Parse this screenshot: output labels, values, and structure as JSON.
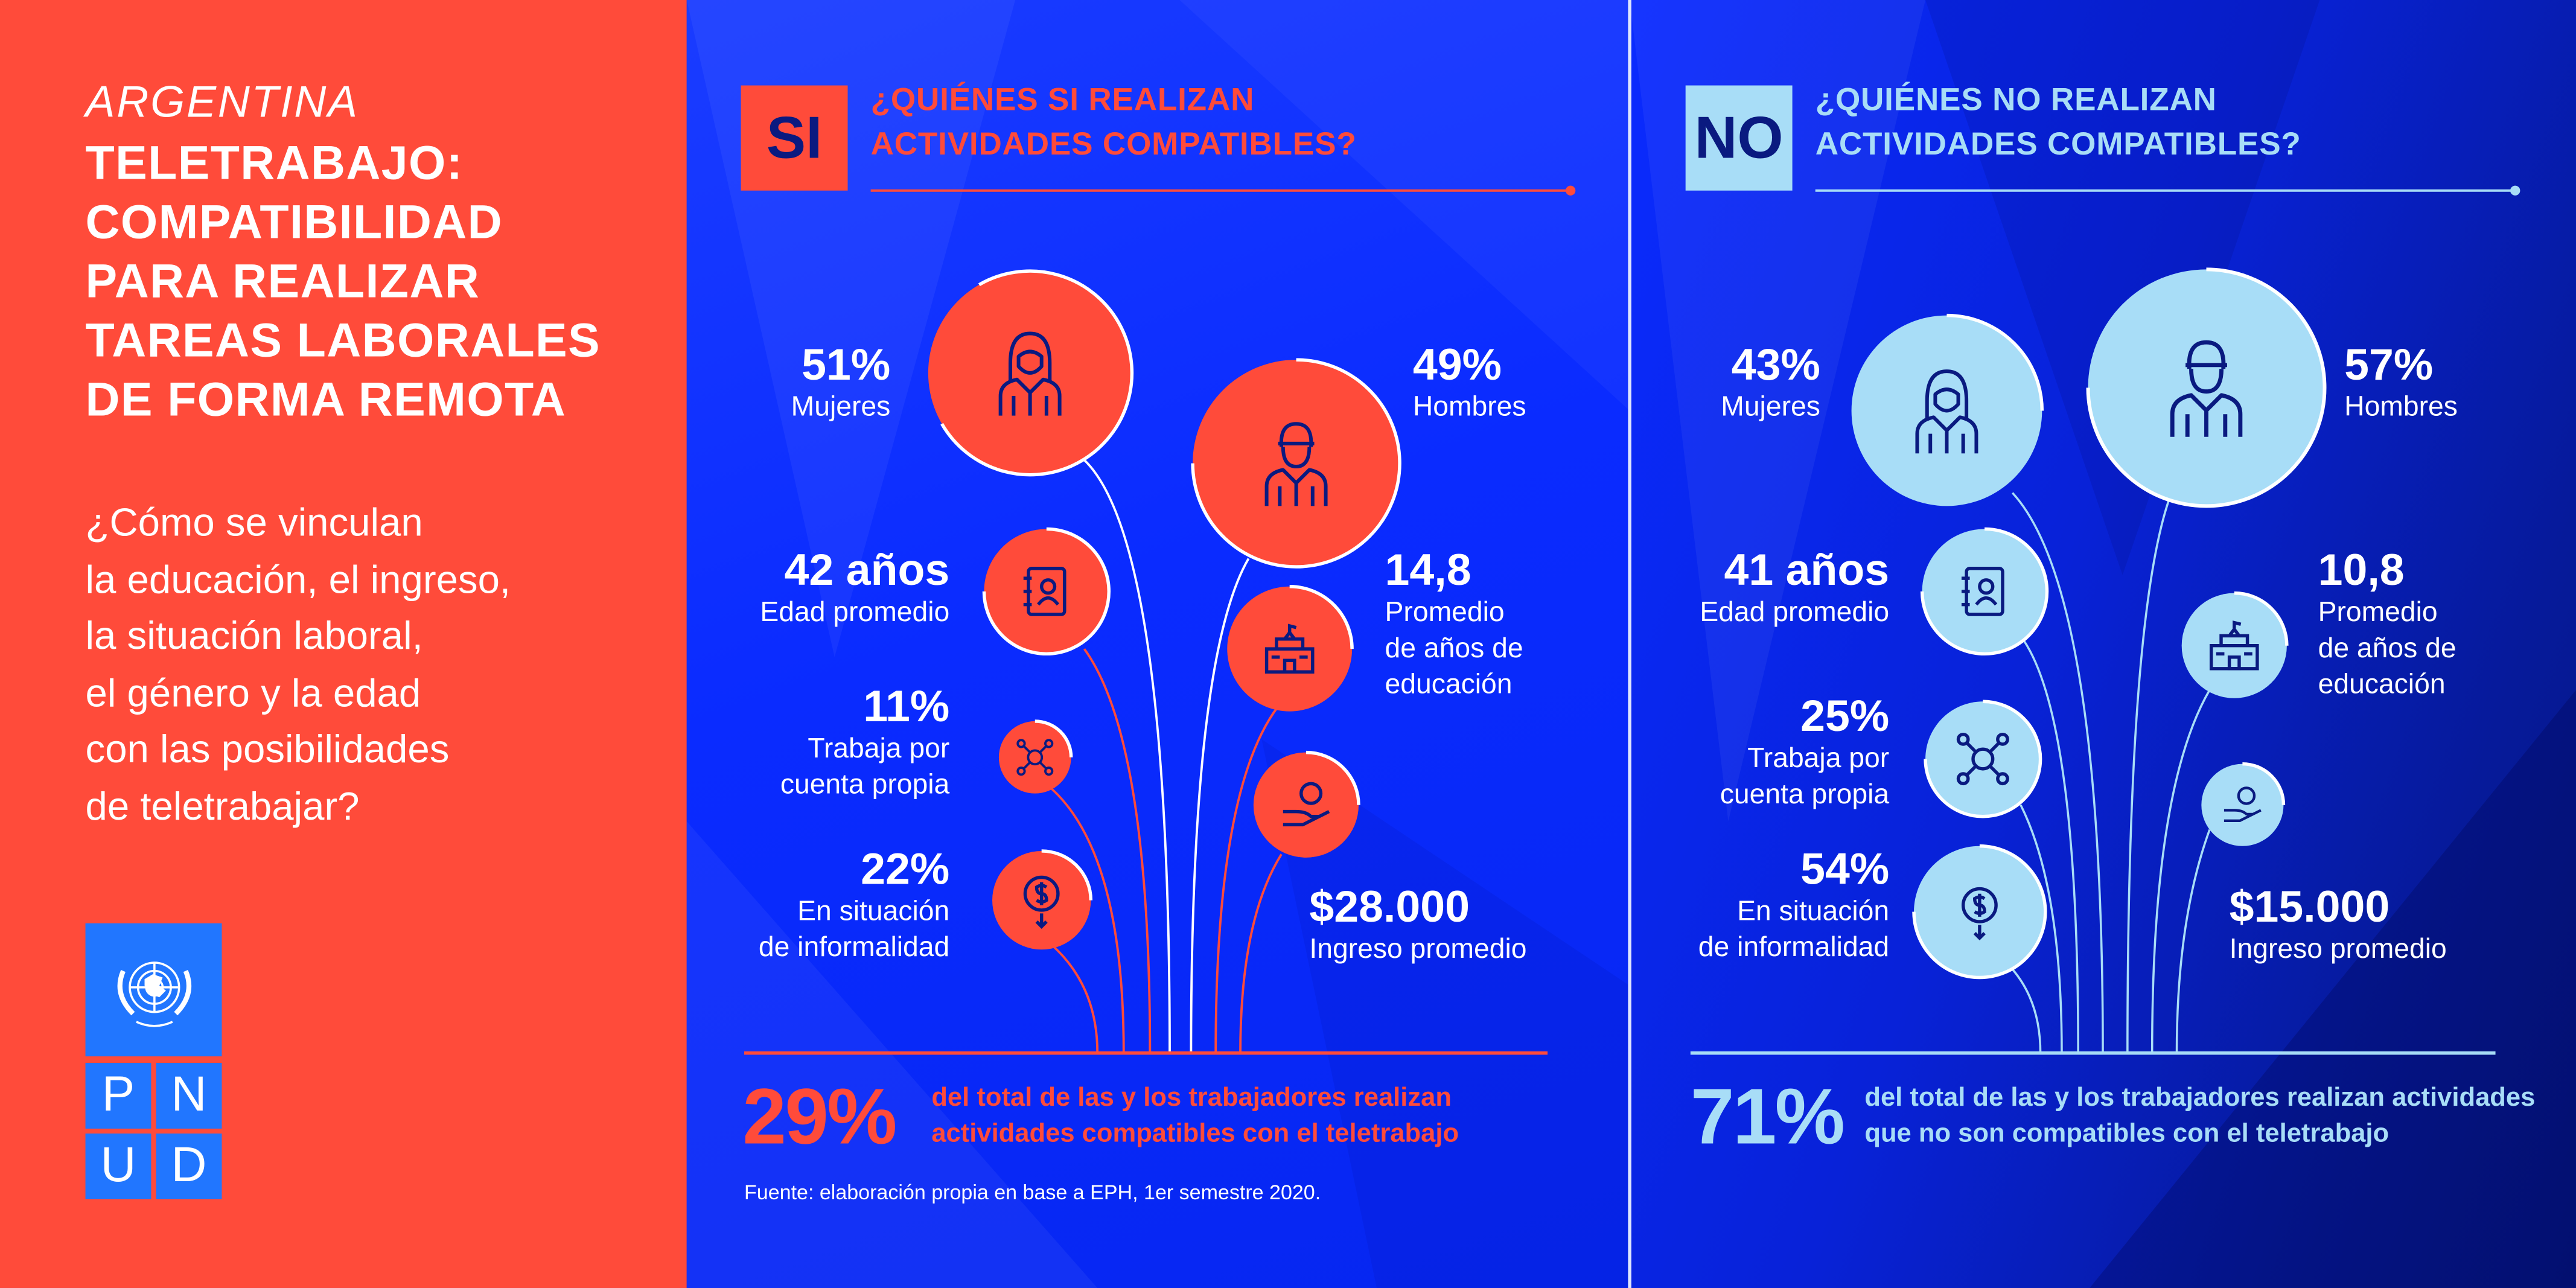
{
  "left": {
    "country": "ARGENTINA",
    "title_lines": [
      "TELETRABAJO:",
      "COMPATIBILIDAD",
      "PARA REALIZAR",
      "TAREAS LABORALES",
      "DE FORMA REMOTA"
    ],
    "question_lines": [
      "¿Cómo se vinculan",
      "la educación, el ingreso,",
      "la situación laboral,",
      "el género y la edad",
      "con las posibilidades",
      "de teletrabajar?"
    ],
    "logo": {
      "letters": [
        "P",
        "N",
        "U",
        "D"
      ],
      "text": "PNUD"
    }
  },
  "si": {
    "badge": "SI",
    "question_lines": [
      "¿QUIÉNES SI REALIZAN",
      "ACTIVIDADES COMPATIBLES?"
    ],
    "accent": "#ff4b3a",
    "women": {
      "value": "51%",
      "label": "Mujeres"
    },
    "men": {
      "value": "49%",
      "label": "Hombres"
    },
    "age": {
      "value": "42 años",
      "label": "Edad promedio"
    },
    "education": {
      "value": "14,8",
      "label_lines": [
        "Promedio",
        "de años de",
        "educación"
      ]
    },
    "self_employed": {
      "value": "11%",
      "label_lines": [
        "Trabaja por",
        "cuenta propia"
      ]
    },
    "informal": {
      "value": "22%",
      "label_lines": [
        "En situación",
        "de informalidad"
      ]
    },
    "income": {
      "value": "$28.000",
      "label": "Ingreso promedio"
    },
    "total": {
      "value": "29%",
      "text_lines": [
        "del total de las y los trabajadores realizan",
        "actividades compatibles con el teletrabajo"
      ]
    },
    "source": "Fuente: elaboración propia en base a EPH, 1er semestre 2020."
  },
  "no": {
    "badge": "NO",
    "question_lines": [
      "¿QUIÉNES NO REALIZAN",
      "ACTIVIDADES COMPATIBLES?"
    ],
    "accent": "#a8ddf7",
    "women": {
      "value": "43%",
      "label": "Mujeres"
    },
    "men": {
      "value": "57%",
      "label": "Hombres"
    },
    "age": {
      "value": "41 años",
      "label": "Edad promedio"
    },
    "education": {
      "value": "10,8",
      "label_lines": [
        "Promedio",
        "de años de",
        "educación"
      ]
    },
    "self_employed": {
      "value": "25%",
      "label_lines": [
        "Trabaja por",
        "cuenta propia"
      ]
    },
    "informal": {
      "value": "54%",
      "label_lines": [
        "En situación",
        "de informalidad"
      ]
    },
    "income": {
      "value": "$15.000",
      "label": "Ingreso promedio"
    },
    "total": {
      "value": "71%",
      "text_lines": [
        "del total de las y los trabajadores realizan actividades",
        "que no son compatibles con el teletrabajo"
      ]
    }
  }
}
